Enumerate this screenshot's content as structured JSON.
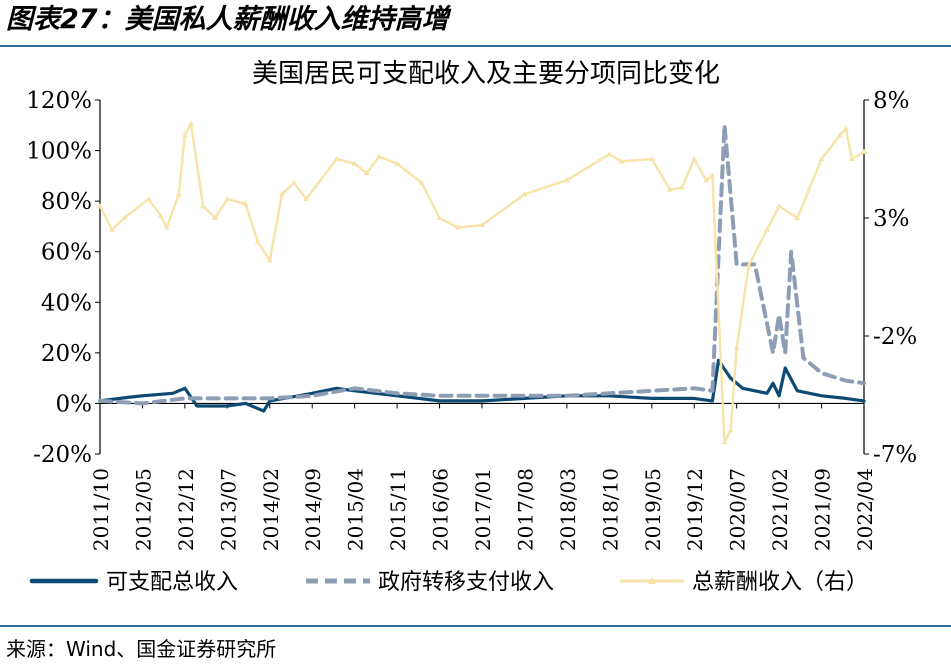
{
  "figure": {
    "title": "图表27：美国私人薪酬收入维持高增",
    "source": "来源：Wind、国金证券研究所"
  },
  "colors": {
    "disposable": "#0d4a73",
    "transfer": "#8c9db4",
    "wages": "#f7e3a8",
    "rule": "#2f6fa0"
  },
  "chart_data": {
    "type": "line",
    "title": "美国居民可支配收入及主要分项同比变化",
    "x_tick_labels": [
      "2011/10",
      "2012/05",
      "2012/12",
      "2013/07",
      "2014/02",
      "2014/09",
      "2015/04",
      "2015/11",
      "2016/06",
      "2017/01",
      "2017/08",
      "2018/03",
      "2018/10",
      "2019/05",
      "2019/12",
      "2020/07",
      "2021/02",
      "2021/09",
      "2022/04"
    ],
    "x_range": [
      "2011/10",
      "2022/04"
    ],
    "y_left": {
      "min": -20,
      "max": 120,
      "unit": "%",
      "ticks": [
        "-20%",
        "0%",
        "20%",
        "40%",
        "60%",
        "80%",
        "100%",
        "120%"
      ]
    },
    "y_right": {
      "min": -7,
      "max": 8,
      "unit": "%",
      "ticks": [
        "-7%",
        "-2%",
        "3%",
        "8%"
      ]
    },
    "grid": false,
    "legend_position": "bottom",
    "series": [
      {
        "name": "可支配总收入",
        "axis": "left",
        "points": [
          [
            "2011/10",
            1
          ],
          [
            "2012/03",
            2.5
          ],
          [
            "2012/05",
            3
          ],
          [
            "2012/10",
            4
          ],
          [
            "2012/12",
            6
          ],
          [
            "2013/02",
            -1
          ],
          [
            "2013/07",
            -1
          ],
          [
            "2013/10",
            0
          ],
          [
            "2014/01",
            -3
          ],
          [
            "2014/02",
            1
          ],
          [
            "2014/09",
            4
          ],
          [
            "2015/01",
            6
          ],
          [
            "2015/04",
            5
          ],
          [
            "2015/11",
            3
          ],
          [
            "2016/06",
            1
          ],
          [
            "2017/01",
            1
          ],
          [
            "2017/08",
            2
          ],
          [
            "2018/03",
            3
          ],
          [
            "2018/10",
            3
          ],
          [
            "2019/05",
            2
          ],
          [
            "2019/12",
            2
          ],
          [
            "2020/03",
            1
          ],
          [
            "2020/04",
            17
          ],
          [
            "2020/06",
            10
          ],
          [
            "2020/08",
            6
          ],
          [
            "2020/12",
            4
          ],
          [
            "2021/01",
            8
          ],
          [
            "2021/02",
            3
          ],
          [
            "2021/03",
            14
          ],
          [
            "2021/05",
            5
          ],
          [
            "2021/09",
            3
          ],
          [
            "2022/01",
            2
          ],
          [
            "2022/04",
            1
          ]
        ]
      },
      {
        "name": "政府转移支付收入",
        "axis": "left",
        "points": [
          [
            "2011/10",
            1
          ],
          [
            "2012/05",
            0
          ],
          [
            "2012/12",
            2
          ],
          [
            "2013/07",
            2
          ],
          [
            "2014/02",
            2
          ],
          [
            "2014/09",
            3
          ],
          [
            "2015/04",
            6
          ],
          [
            "2015/11",
            4
          ],
          [
            "2016/06",
            3
          ],
          [
            "2017/01",
            3
          ],
          [
            "2017/08",
            3
          ],
          [
            "2018/03",
            3
          ],
          [
            "2018/10",
            4
          ],
          [
            "2019/05",
            5
          ],
          [
            "2019/12",
            6
          ],
          [
            "2020/03",
            5
          ],
          [
            "2020/05",
            110
          ],
          [
            "2020/07",
            55
          ],
          [
            "2020/10",
            55
          ],
          [
            "2021/01",
            20
          ],
          [
            "2021/02",
            35
          ],
          [
            "2021/03",
            20
          ],
          [
            "2021/04",
            60
          ],
          [
            "2021/06",
            18
          ],
          [
            "2021/09",
            12
          ],
          [
            "2022/01",
            9
          ],
          [
            "2022/04",
            8
          ]
        ]
      },
      {
        "name": "总薪酬收入（右）",
        "axis": "right",
        "points": [
          [
            "2011/10",
            3.5
          ],
          [
            "2011/12",
            2.5
          ],
          [
            "2012/02",
            3
          ],
          [
            "2012/06",
            3.8
          ],
          [
            "2012/08",
            3.1
          ],
          [
            "2012/09",
            2.6
          ],
          [
            "2012/11",
            4
          ],
          [
            "2012/12",
            6.5
          ],
          [
            "2013/01",
            7
          ],
          [
            "2013/03",
            3.5
          ],
          [
            "2013/05",
            3
          ],
          [
            "2013/07",
            3.8
          ],
          [
            "2013/10",
            3.6
          ],
          [
            "2013/12",
            2
          ],
          [
            "2014/02",
            1.2
          ],
          [
            "2014/04",
            4
          ],
          [
            "2014/06",
            4.5
          ],
          [
            "2014/08",
            3.8
          ],
          [
            "2015/01",
            5.5
          ],
          [
            "2015/04",
            5.3
          ],
          [
            "2015/06",
            4.9
          ],
          [
            "2015/08",
            5.6
          ],
          [
            "2015/11",
            5.3
          ],
          [
            "2016/03",
            4.5
          ],
          [
            "2016/06",
            3
          ],
          [
            "2016/09",
            2.6
          ],
          [
            "2017/01",
            2.7
          ],
          [
            "2017/08",
            4
          ],
          [
            "2018/03",
            4.6
          ],
          [
            "2018/10",
            5.7
          ],
          [
            "2018/12",
            5.4
          ],
          [
            "2019/05",
            5.5
          ],
          [
            "2019/08",
            4.2
          ],
          [
            "2019/10",
            4.3
          ],
          [
            "2019/12",
            5.5
          ],
          [
            "2020/02",
            4.6
          ],
          [
            "2020/03",
            4.8
          ],
          [
            "2020/05",
            -6.5
          ],
          [
            "2020/06",
            -6
          ],
          [
            "2020/07",
            -2.5
          ],
          [
            "2020/09",
            1
          ],
          [
            "2020/12",
            2.5
          ],
          [
            "2021/02",
            3.5
          ],
          [
            "2021/05",
            3
          ],
          [
            "2021/09",
            5.5
          ],
          [
            "2021/12",
            6.5
          ],
          [
            "2022/01",
            6.8
          ],
          [
            "2022/02",
            5.5
          ],
          [
            "2022/04",
            5.8
          ]
        ]
      }
    ]
  }
}
